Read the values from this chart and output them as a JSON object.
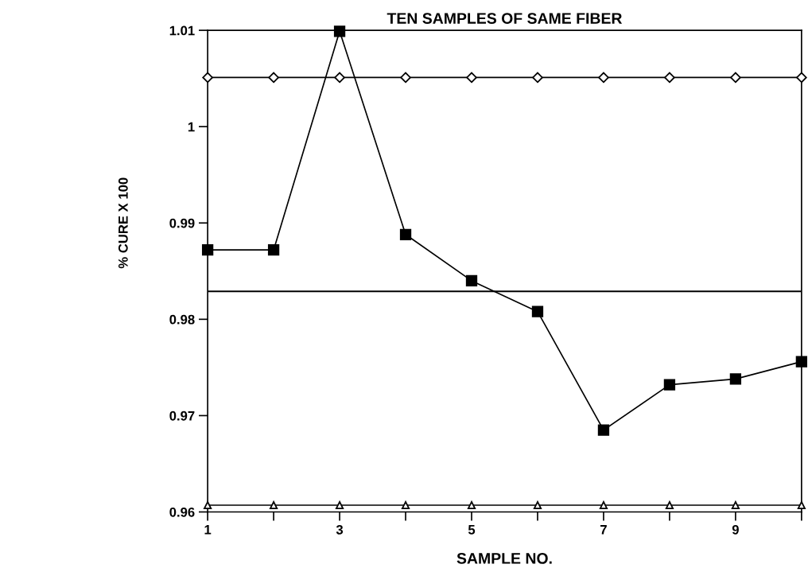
{
  "chart_data": {
    "type": "line",
    "title": "TEN SAMPLES OF SAME FIBER",
    "xlabel": "SAMPLE NO.",
    "ylabel": "% CURE X 100",
    "x": [
      1,
      2,
      3,
      4,
      5,
      6,
      7,
      8,
      9,
      10
    ],
    "series": [
      {
        "color": "#000000",
        "marker": "square",
        "values": [
          0.9872,
          0.9872,
          1.0099,
          0.9888,
          0.984,
          0.9808,
          0.9685,
          0.9732,
          0.9738,
          0.9756
        ]
      },
      {
        "color": "#000000",
        "marker": "diamond",
        "values": [
          1.0051,
          1.0051,
          1.0051,
          1.0051,
          1.0051,
          1.0051,
          1.0051,
          1.0051,
          1.0051,
          1.0051
        ]
      },
      {
        "color": "#000000",
        "marker": "triangle",
        "values": [
          0.9607,
          0.9607,
          0.9607,
          0.9607,
          0.9607,
          0.9607,
          0.9607,
          0.9607,
          0.9607,
          0.9607
        ]
      }
    ],
    "ref_lines": [
      {
        "axis": "y",
        "value": 0.9829,
        "color": "#000000"
      }
    ],
    "xlim": [
      1,
      10
    ],
    "xticks": [
      1,
      {
        "value": 2,
        "label": null
      },
      3,
      {
        "value": 4,
        "label": null
      },
      5,
      {
        "value": 6,
        "label": null
      },
      7,
      {
        "value": 8,
        "label": null
      },
      9,
      {
        "value": 10,
        "label": null
      }
    ],
    "ylim": [
      0.96,
      1.01
    ],
    "yticks": [
      0.96,
      0.97,
      0.98,
      0.99,
      1,
      1.01
    ],
    "grid": false,
    "legend": false,
    "line_style": "solid"
  }
}
